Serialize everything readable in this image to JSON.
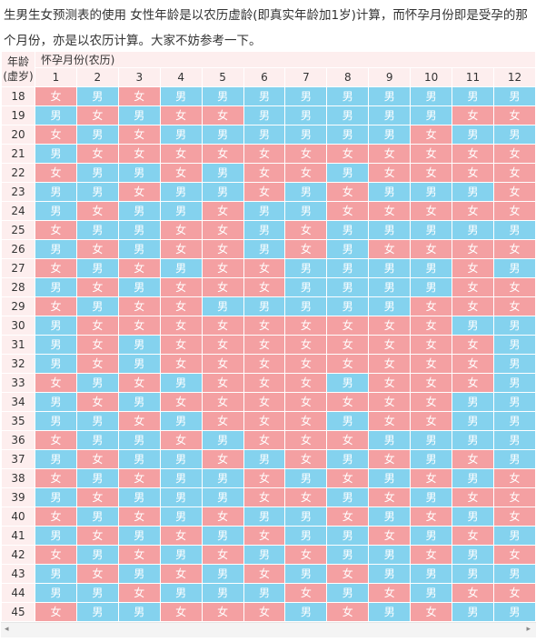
{
  "intro_text": "生男生女预测表的使用 女性年龄是以农历虚龄(即真实年龄加1岁)计算，而怀孕月份即是受孕的那个月份，亦是以农历计算。大家不妨参考一下。",
  "header": {
    "age_line1": "年龄",
    "age_line2": "(虚岁)",
    "month_title": "怀孕月份(农历)",
    "months": [
      "1",
      "2",
      "3",
      "4",
      "5",
      "6",
      "7",
      "8",
      "9",
      "10",
      "11",
      "12"
    ]
  },
  "labels": {
    "boy": "男",
    "girl": "女"
  },
  "colors": {
    "boy": "#84d2ee",
    "girl": "#f4a0a2",
    "header_bg": "#fdeeee"
  },
  "rows": [
    {
      "age": "18",
      "cells": [
        "女",
        "男",
        "女",
        "男",
        "男",
        "男",
        "男",
        "男",
        "男",
        "男",
        "男",
        "男"
      ]
    },
    {
      "age": "19",
      "cells": [
        "男",
        "女",
        "男",
        "女",
        "女",
        "男",
        "男",
        "男",
        "男",
        "男",
        "女",
        "女"
      ]
    },
    {
      "age": "20",
      "cells": [
        "女",
        "男",
        "女",
        "男",
        "男",
        "男",
        "男",
        "男",
        "男",
        "女",
        "男",
        "男"
      ]
    },
    {
      "age": "21",
      "cells": [
        "男",
        "女",
        "女",
        "女",
        "女",
        "女",
        "女",
        "女",
        "女",
        "女",
        "女",
        "女"
      ]
    },
    {
      "age": "22",
      "cells": [
        "女",
        "男",
        "男",
        "女",
        "男",
        "女",
        "女",
        "男",
        "女",
        "女",
        "女",
        "女"
      ]
    },
    {
      "age": "23",
      "cells": [
        "男",
        "男",
        "女",
        "男",
        "男",
        "女",
        "男",
        "女",
        "男",
        "男",
        "男",
        "女"
      ]
    },
    {
      "age": "24",
      "cells": [
        "男",
        "女",
        "男",
        "男",
        "女",
        "男",
        "男",
        "女",
        "女",
        "女",
        "女",
        "女"
      ]
    },
    {
      "age": "25",
      "cells": [
        "女",
        "男",
        "男",
        "女",
        "女",
        "男",
        "女",
        "男",
        "男",
        "男",
        "男",
        "男"
      ]
    },
    {
      "age": "26",
      "cells": [
        "男",
        "女",
        "男",
        "女",
        "女",
        "男",
        "女",
        "男",
        "女",
        "女",
        "女",
        "女"
      ]
    },
    {
      "age": "27",
      "cells": [
        "女",
        "男",
        "女",
        "男",
        "女",
        "女",
        "男",
        "男",
        "男",
        "男",
        "女",
        "男"
      ]
    },
    {
      "age": "28",
      "cells": [
        "男",
        "女",
        "男",
        "女",
        "女",
        "女",
        "男",
        "男",
        "男",
        "男",
        "女",
        "女"
      ]
    },
    {
      "age": "29",
      "cells": [
        "女",
        "男",
        "女",
        "女",
        "男",
        "男",
        "男",
        "男",
        "男",
        "女",
        "女",
        "女"
      ]
    },
    {
      "age": "30",
      "cells": [
        "男",
        "女",
        "女",
        "女",
        "女",
        "女",
        "女",
        "女",
        "女",
        "女",
        "男",
        "男"
      ]
    },
    {
      "age": "31",
      "cells": [
        "男",
        "女",
        "男",
        "女",
        "女",
        "女",
        "女",
        "女",
        "女",
        "女",
        "女",
        "男"
      ]
    },
    {
      "age": "32",
      "cells": [
        "男",
        "女",
        "男",
        "女",
        "女",
        "女",
        "女",
        "女",
        "女",
        "女",
        "女",
        "男"
      ]
    },
    {
      "age": "33",
      "cells": [
        "女",
        "男",
        "女",
        "男",
        "女",
        "女",
        "女",
        "男",
        "女",
        "女",
        "女",
        "男"
      ]
    },
    {
      "age": "34",
      "cells": [
        "男",
        "女",
        "男",
        "女",
        "女",
        "女",
        "女",
        "女",
        "女",
        "女",
        "男",
        "男"
      ]
    },
    {
      "age": "35",
      "cells": [
        "男",
        "男",
        "女",
        "男",
        "女",
        "女",
        "女",
        "男",
        "女",
        "女",
        "男",
        "男"
      ]
    },
    {
      "age": "36",
      "cells": [
        "女",
        "男",
        "男",
        "女",
        "男",
        "女",
        "女",
        "女",
        "男",
        "男",
        "男",
        "男"
      ]
    },
    {
      "age": "37",
      "cells": [
        "男",
        "女",
        "男",
        "男",
        "女",
        "男",
        "女",
        "男",
        "女",
        "男",
        "女",
        "男"
      ]
    },
    {
      "age": "38",
      "cells": [
        "女",
        "男",
        "女",
        "男",
        "男",
        "女",
        "男",
        "女",
        "男",
        "女",
        "男",
        "女"
      ]
    },
    {
      "age": "39",
      "cells": [
        "男",
        "女",
        "男",
        "男",
        "男",
        "女",
        "女",
        "男",
        "女",
        "男",
        "女",
        "女"
      ]
    },
    {
      "age": "40",
      "cells": [
        "女",
        "男",
        "女",
        "男",
        "女",
        "男",
        "男",
        "女",
        "男",
        "女",
        "男",
        "女"
      ]
    },
    {
      "age": "41",
      "cells": [
        "男",
        "女",
        "男",
        "女",
        "男",
        "女",
        "男",
        "男",
        "女",
        "男",
        "女",
        "男"
      ]
    },
    {
      "age": "42",
      "cells": [
        "女",
        "男",
        "女",
        "男",
        "女",
        "男",
        "女",
        "男",
        "男",
        "女",
        "男",
        "女"
      ]
    },
    {
      "age": "43",
      "cells": [
        "男",
        "女",
        "男",
        "女",
        "男",
        "女",
        "男",
        "女",
        "男",
        "男",
        "男",
        "男"
      ]
    },
    {
      "age": "44",
      "cells": [
        "男",
        "男",
        "女",
        "男",
        "男",
        "男",
        "女",
        "男",
        "女",
        "男",
        "女",
        "女"
      ]
    },
    {
      "age": "45",
      "cells": [
        "女",
        "男",
        "男",
        "女",
        "女",
        "女",
        "男",
        "女",
        "男",
        "女",
        "男",
        "男"
      ]
    }
  ],
  "scrollbar": {
    "left_arrow": "◂",
    "right_arrow": "▸"
  }
}
